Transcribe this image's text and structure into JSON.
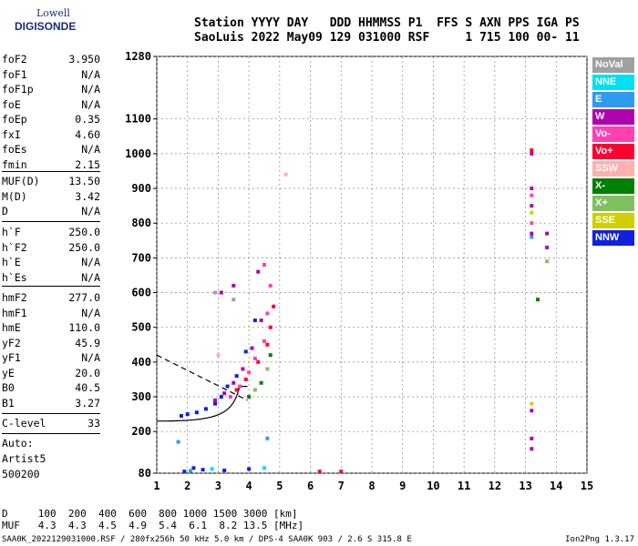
{
  "logo": {
    "top": "Lowell",
    "bottom": "DIGISONDE"
  },
  "header": {
    "line1": "Station YYYY DAY   DDD HHMMSS P1  FFS S AXN PPS IGA PS",
    "line2": "SaoLuis 2022 May09 129 031000 RSF     1 715 100 00- 11"
  },
  "parameters": [
    {
      "name": "foF2",
      "value": "3.950"
    },
    {
      "name": "foF1",
      "value": "N/A"
    },
    {
      "name": "foF1p",
      "value": "N/A"
    },
    {
      "name": "foE",
      "value": "N/A"
    },
    {
      "name": "foEp",
      "value": "0.35"
    },
    {
      "name": "fxI",
      "value": "4.60"
    },
    {
      "name": "foEs",
      "value": "N/A"
    },
    {
      "name": "fmin",
      "value": "2.15"
    },
    {
      "name": "MUF(D)",
      "value": "13.50"
    },
    {
      "name": "M(D)",
      "value": "3.42"
    },
    {
      "name": "D",
      "value": "N/A"
    },
    {
      "name": "h`F",
      "value": "250.0"
    },
    {
      "name": "h`F2",
      "value": "250.0"
    },
    {
      "name": "h`E",
      "value": "N/A"
    },
    {
      "name": "h`Es",
      "value": "N/A"
    },
    {
      "name": "hmF2",
      "value": "277.0"
    },
    {
      "name": "hmF1",
      "value": "N/A"
    },
    {
      "name": "hmE",
      "value": "110.0"
    },
    {
      "name": "yF2",
      "value": "45.9"
    },
    {
      "name": "yF1",
      "value": "N/A"
    },
    {
      "name": "yE",
      "value": "20.0"
    },
    {
      "name": "B0",
      "value": "40.5"
    },
    {
      "name": "B1",
      "value": "3.27"
    },
    {
      "name": "C-level",
      "value": "33"
    }
  ],
  "auto": {
    "label": "Auto:",
    "name": "Artist5",
    "version": "500200"
  },
  "bottom": {
    "d_row": "D     100  200  400  600  800 1000 1500 3000 [km]",
    "muf_row": "MUF   4.3  4.3  4.5  4.9  5.4  6.1  8.2 13.5 [MHz]"
  },
  "footer": {
    "left": "SAA0K_2022129031000.RSF / 280fx256h 50 kHz 5.0 km / DPS-4 SAA0K 903 / 2.6 S 315.8 E",
    "right": "Ion2Png 1.3.17"
  },
  "legend": [
    {
      "label": "NoVal",
      "color": "#a0a0a0"
    },
    {
      "label": "NNE",
      "color": "#00e0f0"
    },
    {
      "label": "E",
      "color": "#2f9bf0"
    },
    {
      "label": "W",
      "color": "#b000b0"
    },
    {
      "label": "Vo-",
      "color": "#ff40b0"
    },
    {
      "label": "Vo+",
      "color": "#ff0030"
    },
    {
      "label": "SSW",
      "color": "#ffb0b0"
    },
    {
      "label": "X-",
      "color": "#008000"
    },
    {
      "label": "X+",
      "color": "#80c060"
    },
    {
      "label": "SSE",
      "color": "#d0d000"
    },
    {
      "label": "NNW",
      "color": "#1020e0"
    }
  ],
  "chart_data": {
    "type": "scatter",
    "xlim": [
      1,
      15
    ],
    "ylim": [
      80,
      1280
    ],
    "x_ticks": [
      "1",
      "2",
      "3",
      "4",
      "5",
      "6",
      "7",
      "8",
      "9",
      "10",
      "11",
      "12",
      "13",
      "14",
      "15"
    ],
    "y_ticks": [
      "1280",
      "1100",
      "1000",
      "900",
      "800",
      "700",
      "600",
      "500",
      "400",
      "300",
      "200",
      "80"
    ],
    "y_tick_values": [
      1280,
      1100,
      1000,
      900,
      800,
      700,
      600,
      500,
      400,
      300,
      200,
      80
    ],
    "grid": true,
    "series": [
      {
        "name": "NNW",
        "color": "#1020e0",
        "points": [
          [
            1.8,
            245
          ],
          [
            2.0,
            250
          ],
          [
            2.3,
            255
          ],
          [
            2.6,
            265
          ],
          [
            2.9,
            280
          ],
          [
            3.1,
            300
          ],
          [
            3.3,
            330
          ],
          [
            3.6,
            360
          ],
          [
            3.9,
            430
          ],
          [
            4.2,
            520
          ],
          [
            1.9,
            85
          ],
          [
            2.5,
            90
          ],
          [
            3.2,
            88
          ],
          [
            4.0,
            92
          ],
          [
            2.2,
            95
          ]
        ]
      },
      {
        "name": "W",
        "color": "#b000b0",
        "points": [
          [
            2.9,
            290
          ],
          [
            3.2,
            310
          ],
          [
            3.5,
            340
          ],
          [
            3.8,
            380
          ],
          [
            4.1,
            440
          ],
          [
            4.4,
            520
          ],
          [
            3.1,
            600
          ],
          [
            3.5,
            620
          ],
          [
            4.3,
            660
          ],
          [
            13.2,
            1000
          ],
          [
            13.2,
            900
          ],
          [
            13.2,
            850
          ],
          [
            13.2,
            770
          ],
          [
            13.2,
            260
          ],
          [
            13.2,
            180
          ],
          [
            13.2,
            150
          ],
          [
            13.7,
            770
          ],
          [
            13.7,
            730
          ]
        ]
      },
      {
        "name": "Vo-",
        "color": "#ff40b0",
        "points": [
          [
            3.4,
            300
          ],
          [
            3.7,
            330
          ],
          [
            4.0,
            370
          ],
          [
            4.2,
            410
          ],
          [
            4.5,
            460
          ],
          [
            4.6,
            540
          ],
          [
            4.7,
            620
          ],
          [
            4.5,
            680
          ],
          [
            13.2,
            880
          ],
          [
            13.2,
            800
          ]
        ]
      },
      {
        "name": "Vo+",
        "color": "#ff0030",
        "points": [
          [
            3.6,
            320
          ],
          [
            3.9,
            350
          ],
          [
            4.3,
            400
          ],
          [
            4.6,
            450
          ],
          [
            4.7,
            500
          ],
          [
            4.8,
            560
          ],
          [
            13.2,
            1010
          ],
          [
            6.3,
            85
          ],
          [
            7.0,
            85
          ]
        ]
      },
      {
        "name": "X-",
        "color": "#008000",
        "points": [
          [
            4.0,
            300
          ],
          [
            4.4,
            340
          ],
          [
            4.7,
            420
          ],
          [
            13.4,
            580
          ]
        ]
      },
      {
        "name": "X+",
        "color": "#80c060",
        "points": [
          [
            4.2,
            320
          ],
          [
            4.6,
            380
          ],
          [
            13.7,
            690
          ]
        ]
      },
      {
        "name": "SSE",
        "color": "#d0d000",
        "points": [
          [
            13.2,
            280
          ],
          [
            13.2,
            830
          ]
        ]
      },
      {
        "name": "E",
        "color": "#2f9bf0",
        "points": [
          [
            2.1,
            87
          ],
          [
            4.6,
            180
          ],
          [
            13.2,
            760
          ],
          [
            1.7,
            170
          ]
        ]
      },
      {
        "name": "NNE",
        "color": "#00e0f0",
        "points": [
          [
            4.5,
            95
          ],
          [
            2.8,
            92
          ]
        ]
      },
      {
        "name": "SSW",
        "color": "#ffb0b0",
        "points": [
          [
            5.2,
            940
          ],
          [
            3.0,
            420
          ]
        ]
      },
      {
        "name": "NoVal",
        "color": "#a0a0a0",
        "points": [
          [
            3.5,
            580
          ],
          [
            2.9,
            600
          ]
        ]
      }
    ]
  }
}
